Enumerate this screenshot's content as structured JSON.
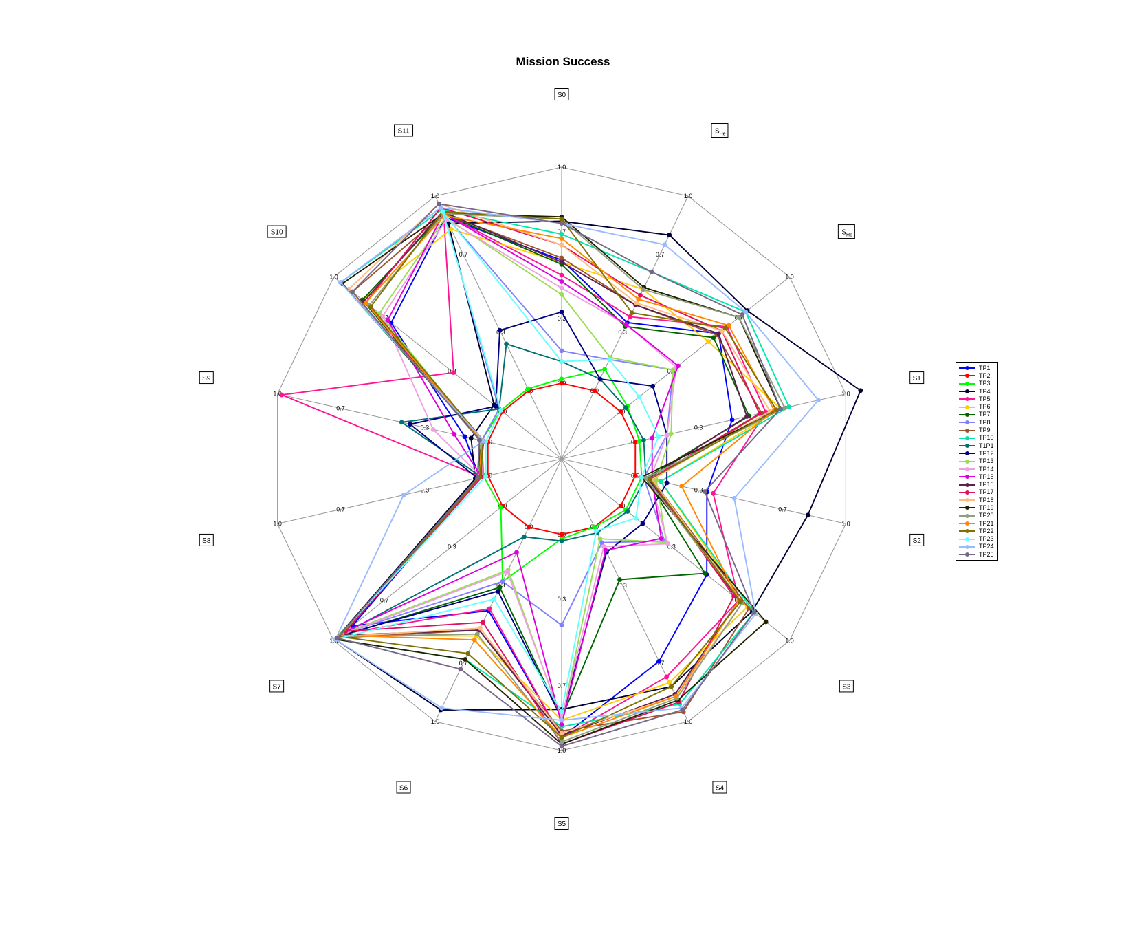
{
  "chart_data": {
    "type": "radar",
    "title": "Mission Success",
    "axes": [
      {
        "label": "S0",
        "sub": ""
      },
      {
        "label": "S",
        "sub": "He"
      },
      {
        "label": "S",
        "sub": "Ho"
      },
      {
        "label": "S1",
        "sub": ""
      },
      {
        "label": "S2",
        "sub": ""
      },
      {
        "label": "S3",
        "sub": ""
      },
      {
        "label": "S4",
        "sub": ""
      },
      {
        "label": "S5",
        "sub": ""
      },
      {
        "label": "S6",
        "sub": ""
      },
      {
        "label": "S7",
        "sub": ""
      },
      {
        "label": "S8",
        "sub": ""
      },
      {
        "label": "S9",
        "sub": ""
      },
      {
        "label": "S10",
        "sub": ""
      },
      {
        "label": "S11",
        "sub": ""
      }
    ],
    "tick_labels": [
      "0.0",
      "0.3",
      "0.7",
      "1.0"
    ],
    "legend_position": "right",
    "series": [
      {
        "name": "TP1",
        "color": "#0000ff",
        "values": [
          0.57,
          0.35,
          0.58,
          0.46,
          0.34,
          0.51,
          0.69,
          0.94,
          0.43,
          0.89,
          0.04,
          0.11,
          0.66,
          0.89
        ]
      },
      {
        "name": "TP2",
        "color": "#ff0000",
        "values": [
          0.0,
          0.0,
          0.0,
          0.0,
          0.0,
          0.0,
          0.0,
          0.0,
          0.0,
          0.0,
          0.0,
          0.0,
          0.0,
          0.0
        ]
      },
      {
        "name": "TP3",
        "color": "#00ff00",
        "values": [
          0.02,
          0.11,
          0.04,
          0.02,
          0.03,
          0.03,
          0.0,
          0.02,
          0.28,
          0.01,
          0.02,
          0.03,
          0.01,
          0.01
        ]
      },
      {
        "name": "TP4",
        "color": "#000033",
        "values": [
          0.75,
          0.8,
          0.75,
          1.07,
          0.82,
          0.78,
          0.82,
          0.81,
          0.94,
          0.99,
          0.06,
          0.08,
          0.05,
          0.86
        ]
      },
      {
        "name": "TP5",
        "color": "#ff1493",
        "values": [
          0.5,
          0.38,
          0.63,
          0.62,
          0.37,
          0.7,
          0.77,
          0.94,
          0.42,
          0.95,
          0.03,
          0.98,
          0.29,
          0.91
        ]
      },
      {
        "name": "TP6",
        "color": "#ffcc00",
        "values": [
          0.56,
          0.52,
          0.52,
          0.69,
          0.12,
          0.75,
          0.8,
          0.86,
          0.56,
          0.96,
          0.04,
          0.03,
          0.83,
          0.83
        ]
      },
      {
        "name": "TP7",
        "color": "#006400",
        "values": [
          0.55,
          0.33,
          0.55,
          0.54,
          0.05,
          0.5,
          0.27,
          0.85,
          0.31,
          0.97,
          0.04,
          0.04,
          0.83,
          0.91
        ]
      },
      {
        "name": "TP8",
        "color": "#8080ff",
        "values": [
          0.15,
          0.16,
          0.31,
          0.15,
          0.04,
          0.26,
          0.08,
          0.42,
          0.28,
          0.95,
          0.03,
          0.03,
          0.02,
          0.91
        ]
      },
      {
        "name": "TP9",
        "color": "#a0522d",
        "values": [
          0.58,
          0.44,
          0.57,
          0.6,
          0.08,
          0.76,
          0.95,
          0.91,
          0.53,
          0.98,
          0.04,
          0.03,
          0.89,
          0.91
        ]
      },
      {
        "name": "TP10",
        "color": "#00e6a8",
        "values": [
          0.69,
          0.61,
          0.74,
          0.73,
          0.12,
          0.79,
          0.91,
          0.89,
          0.68,
          0.99,
          0.03,
          0.03,
          0.96,
          0.93
        ]
      },
      {
        "name": "T1P1",
        "color": "#007070",
        "values": [
          0.1,
          0.06,
          0.03,
          0.04,
          0.05,
          0.04,
          0.03,
          0.03,
          0.05,
          0.96,
          0.03,
          0.41,
          0.02,
          0.24
        ]
      },
      {
        "name": "TP12",
        "color": "#000080",
        "values": [
          0.33,
          0.06,
          0.19,
          0.15,
          0.15,
          0.13,
          0.13,
          0.85,
          0.33,
          0.96,
          0.05,
          0.37,
          0.04,
          0.31
        ]
      },
      {
        "name": "TP13",
        "color": "#99dd55",
        "values": [
          0.41,
          0.17,
          0.31,
          0.17,
          0.1,
          0.27,
          0.06,
          0.86,
          0.22,
          0.95,
          0.04,
          0.03,
          0.73,
          0.89
        ]
      },
      {
        "name": "TP14",
        "color": "#f0a0e0",
        "values": [
          0.44,
          0.34,
          0.33,
          0.15,
          0.07,
          0.28,
          0.1,
          0.85,
          0.23,
          0.96,
          0.03,
          0.26,
          0.71,
          0.88
        ]
      },
      {
        "name": "TP15",
        "color": "#dd00dd",
        "values": [
          0.47,
          0.34,
          0.34,
          0.08,
          0.08,
          0.24,
          0.12,
          0.88,
          0.13,
          0.93,
          0.03,
          0.16,
          0.68,
          0.91
        ]
      },
      {
        "name": "TP16",
        "color": "#5a2050",
        "values": [
          0.56,
          0.44,
          0.58,
          0.53,
          0.06,
          0.7,
          0.86,
          0.93,
          0.53,
          0.96,
          0.04,
          0.02,
          0.82,
          0.92
        ]
      },
      {
        "name": "TP17",
        "color": "#e01060",
        "values": [
          0.64,
          0.49,
          0.6,
          0.59,
          0.07,
          0.67,
          0.9,
          0.97,
          0.49,
          0.93,
          0.03,
          0.03,
          0.81,
          0.94
        ]
      },
      {
        "name": "TP18",
        "color": "#ffbb80",
        "values": [
          0.64,
          0.45,
          0.6,
          0.64,
          0.08,
          0.72,
          0.87,
          0.92,
          0.52,
          0.97,
          0.04,
          0.03,
          0.91,
          0.96
        ]
      },
      {
        "name": "TP19",
        "color": "#222200",
        "values": [
          0.77,
          0.53,
          0.7,
          0.69,
          0.03,
          0.86,
          0.89,
          0.97,
          0.68,
          0.99,
          0.04,
          0.03,
          0.95,
          0.91
        ]
      },
      {
        "name": "TP20",
        "color": "#8fa080",
        "values": [
          0.76,
          0.52,
          0.7,
          0.71,
          0.05,
          0.72,
          0.88,
          0.96,
          0.55,
          0.97,
          0.04,
          0.02,
          0.79,
          0.91
        ]
      },
      {
        "name": "TP21",
        "color": "#ff8800",
        "values": [
          0.67,
          0.47,
          0.64,
          0.66,
          0.22,
          0.7,
          0.87,
          0.94,
          0.58,
          0.96,
          0.04,
          0.03,
          0.81,
          0.9
        ]
      },
      {
        "name": "TP22",
        "color": "#807000",
        "values": [
          0.76,
          0.4,
          0.62,
          0.67,
          0.07,
          0.71,
          0.82,
          0.94,
          0.65,
          0.97,
          0.04,
          0.02,
          0.78,
          0.92
        ]
      },
      {
        "name": "TP23",
        "color": "#66ffff",
        "values": [
          0.1,
          0.16,
          0.11,
          0.11,
          0.03,
          0.09,
          0.02,
          0.82,
          0.37,
          0.99,
          0.01,
          0.01,
          0.01,
          0.92
        ]
      },
      {
        "name": "TP24",
        "color": "#99bbff",
        "values": [
          0.74,
          0.75,
          0.74,
          0.87,
          0.47,
          0.8,
          0.93,
          0.86,
          0.93,
          0.99,
          0.4,
          0.02,
          0.96,
          0.94
        ]
      },
      {
        "name": "TP25",
        "color": "#776688",
        "values": [
          0.74,
          0.61,
          0.72,
          0.69,
          0.33,
          0.79,
          0.94,
          0.98,
          0.73,
          0.98,
          0.05,
          0.04,
          0.89,
          0.96
        ]
      }
    ]
  }
}
